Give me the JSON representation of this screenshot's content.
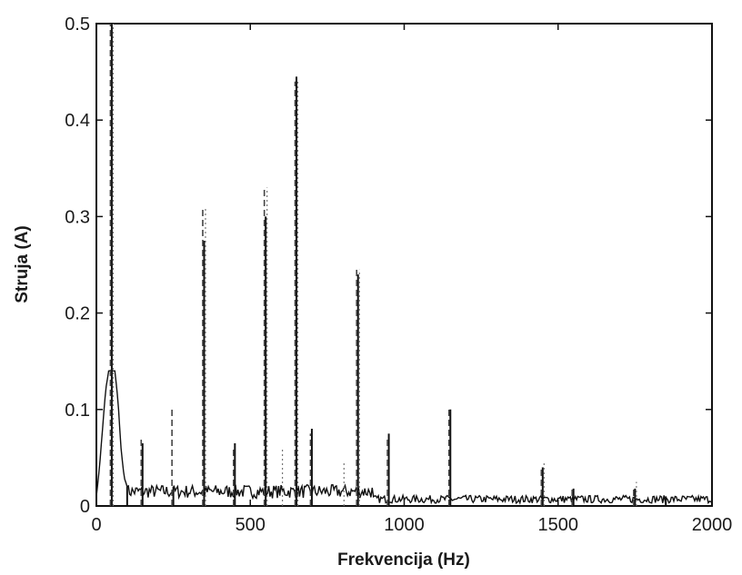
{
  "chart_data": {
    "type": "line",
    "title": "",
    "xlabel": "Frekvencija (Hz)",
    "ylabel": "Struja (A)",
    "xlim": [
      0,
      2000
    ],
    "ylim": [
      0,
      0.5
    ],
    "xticks": [
      0,
      500,
      1000,
      1500,
      2000
    ],
    "yticks": [
      0,
      0.1,
      0.2,
      0.3,
      0.4,
      0.5
    ],
    "xtick_labels": [
      "0",
      "500",
      "1000",
      "1500",
      "2000"
    ],
    "ytick_labels": [
      "0",
      "0.1",
      "0.2",
      "0.3",
      "0.4",
      "0.5"
    ],
    "grid": false,
    "legend": "none",
    "colors": {
      "solid": "#111111",
      "dashed": "#444444",
      "dotted": "#777777"
    },
    "series": [
      {
        "style": "solid",
        "x": [
          0,
          10,
          20,
          30,
          40,
          50,
          60,
          70,
          80,
          90,
          100,
          150,
          250,
          350,
          450,
          550,
          650,
          700,
          850,
          950,
          1150,
          1450,
          1550,
          1750,
          1850,
          2000
        ],
        "y": [
          0.01,
          0.04,
          0.08,
          0.12,
          0.14,
          0.5,
          0.14,
          0.11,
          0.06,
          0.03,
          0.02,
          0.065,
          0.02,
          0.275,
          0.065,
          0.3,
          0.445,
          0.08,
          0.24,
          0.075,
          0.1,
          0.04,
          0.018,
          0.018,
          0.01,
          0.005
        ]
      },
      {
        "style": "dashed",
        "x": [
          50,
          150,
          250,
          350,
          450,
          550,
          650,
          700,
          850,
          950,
          1150,
          1450,
          1550,
          1750
        ],
        "y": [
          0.5,
          0.07,
          0.1,
          0.31,
          0.06,
          0.33,
          0.44,
          0.075,
          0.245,
          0.07,
          0.1,
          0.04,
          0.02,
          0.02
        ]
      },
      {
        "style": "dotted",
        "x": [
          50,
          350,
          550,
          600,
          650,
          800,
          850,
          1450,
          1750
        ],
        "y": [
          0.5,
          0.31,
          0.33,
          0.06,
          0.44,
          0.045,
          0.245,
          0.045,
          0.025
        ]
      }
    ]
  }
}
